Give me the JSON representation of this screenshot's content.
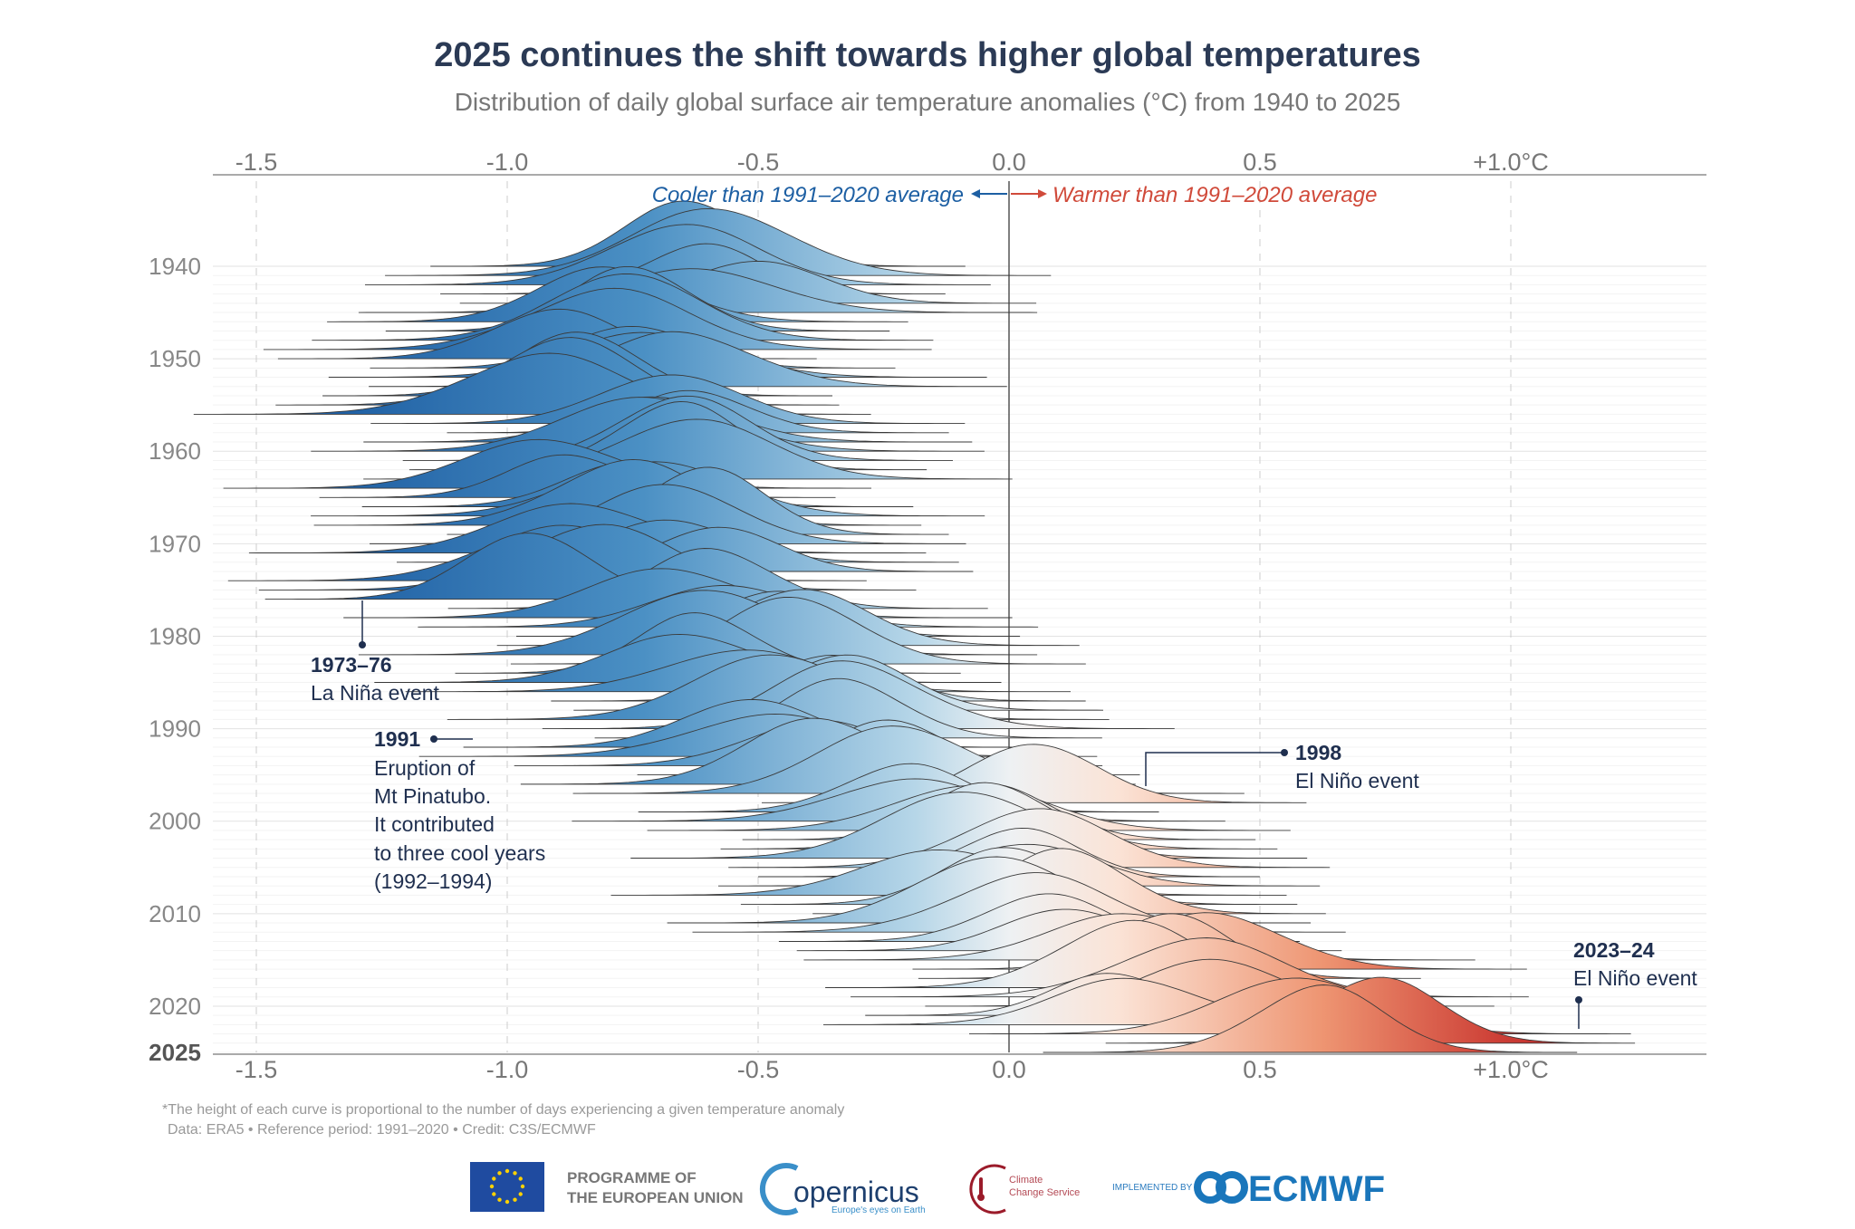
{
  "chart_data": {
    "type": "ridgeline",
    "title": "2025 continues the shift towards higher global temperatures",
    "subtitle": "Distribution of daily global surface air temperature anomalies (°C) from 1940 to 2025",
    "x_ticks": [
      "-1.5",
      "-1.0",
      "-0.5",
      "0.0",
      "0.5",
      "+1.0°C"
    ],
    "x_tick_values": [
      -1.5,
      -1.0,
      -0.5,
      0.0,
      0.5,
      1.0
    ],
    "xlim": [
      -1.6,
      1.38
    ],
    "y_ticks": [
      "1940",
      "1950",
      "1960",
      "1970",
      "1980",
      "1990",
      "2000",
      "2010",
      "2020",
      "2025"
    ],
    "cooler_label": "Cooler than 1991–2020 average",
    "warmer_label": "Warmer than 1991–2020 average",
    "colors": {
      "cold": "#1f5fa6",
      "neutral": "#f2f2f2",
      "warm": "#b0162a",
      "cooler_text": "#1d5fa3",
      "warmer_text": "#d04a3a"
    },
    "grid": true,
    "approx_spread_sd": 0.14,
    "years": [
      1940,
      1941,
      1942,
      1943,
      1944,
      1945,
      1946,
      1947,
      1948,
      1949,
      1950,
      1951,
      1952,
      1953,
      1954,
      1955,
      1956,
      1957,
      1958,
      1959,
      1960,
      1961,
      1962,
      1963,
      1964,
      1965,
      1966,
      1967,
      1968,
      1969,
      1970,
      1971,
      1972,
      1973,
      1974,
      1975,
      1976,
      1977,
      1978,
      1979,
      1980,
      1981,
      1982,
      1983,
      1984,
      1985,
      1986,
      1987,
      1988,
      1989,
      1990,
      1991,
      1992,
      1993,
      1994,
      1995,
      1996,
      1997,
      1998,
      1999,
      2000,
      2001,
      2002,
      2003,
      2004,
      2005,
      2006,
      2007,
      2008,
      2009,
      2010,
      2011,
      2012,
      2013,
      2014,
      2015,
      2016,
      2017,
      2018,
      2019,
      2020,
      2021,
      2022,
      2023,
      2024,
      2025
    ],
    "mean_anomaly": [
      -0.62,
      -0.58,
      -0.66,
      -0.63,
      -0.52,
      -0.62,
      -0.78,
      -0.74,
      -0.77,
      -0.82,
      -0.92,
      -0.75,
      -0.7,
      -0.64,
      -0.86,
      -0.9,
      -0.95,
      -0.68,
      -0.62,
      -0.68,
      -0.72,
      -0.66,
      -0.68,
      -0.64,
      -0.92,
      -0.86,
      -0.74,
      -0.72,
      -0.78,
      -0.62,
      -0.68,
      -0.84,
      -0.66,
      -0.58,
      -0.92,
      -0.84,
      -0.96,
      -0.58,
      -0.66,
      -0.56,
      -0.48,
      -0.44,
      -0.62,
      -0.42,
      -0.6,
      -0.64,
      -0.54,
      -0.38,
      -0.34,
      -0.46,
      -0.3,
      -0.32,
      -0.52,
      -0.5,
      -0.4,
      -0.24,
      -0.36,
      -0.2,
      0.05,
      -0.22,
      -0.22,
      -0.08,
      -0.02,
      -0.02,
      -0.08,
      0.04,
      0.0,
      0.02,
      -0.12,
      0.02,
      0.12,
      -0.04,
      0.02,
      0.06,
      0.12,
      0.26,
      0.42,
      0.32,
      0.22,
      0.36,
      0.4,
      0.22,
      0.26,
      0.58,
      0.72,
      0.6
    ],
    "annotations": {
      "lanina": {
        "title": "1973–76",
        "text": "La Niña event"
      },
      "pinatubo": {
        "title": "1991",
        "lines": [
          "Eruption of",
          "Mt Pinatubo.",
          "It contributed",
          "to three cool years",
          "(1992–1994)"
        ]
      },
      "elnino1998": {
        "title": "1998",
        "text": "El Niño event"
      },
      "elnino2023": {
        "title": "2023–24",
        "text": "El Niño event"
      }
    }
  },
  "footer": {
    "note": "*The height of each curve is proportional to the number of days experiencing a given temperature anomaly",
    "credit": "Data: ERA5 • Reference period: 1991–2020 • Credit: C3S/ECMWF"
  },
  "logos": {
    "eu_line1": "PROGRAMME OF",
    "eu_line2": "THE EUROPEAN UNION",
    "copernicus": "opernicus",
    "copernicus_tag": "Europe's eyes on Earth",
    "c3s_line1": "Climate",
    "c3s_line2": "Change Service",
    "implemented": "IMPLEMENTED BY",
    "ecmwf": "ECMWF"
  }
}
